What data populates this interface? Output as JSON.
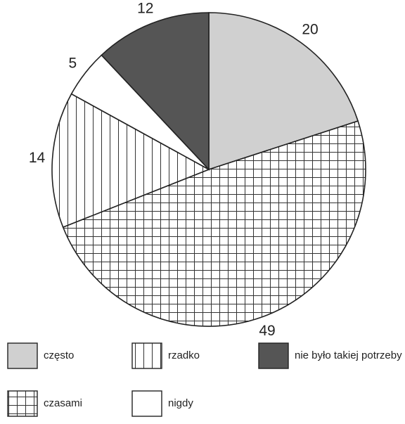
{
  "chart_data": {
    "type": "pie",
    "title": "",
    "slices": [
      {
        "name": "często",
        "value": 20,
        "fill": "#d0d0d0",
        "pattern": "solid-light-gray"
      },
      {
        "name": "czasami",
        "value": 49,
        "fill": "#ffffff",
        "pattern": "grid"
      },
      {
        "name": "rzadko",
        "value": 14,
        "fill": "#ffffff",
        "pattern": "vertical-lines"
      },
      {
        "name": "nigdy",
        "value": 5,
        "fill": "#ffffff",
        "pattern": "blank"
      },
      {
        "name": "nie było takiej potrzeby",
        "value": 12,
        "fill": "#555555",
        "pattern": "solid-dark-gray"
      }
    ],
    "start_direction": "top (12 o'clock)",
    "direction": "clockwise",
    "legend_position": "bottom",
    "legend_order": [
      "często",
      "rzadko",
      "nie było takiej potrzeby",
      "czasami",
      "nigdy"
    ]
  }
}
